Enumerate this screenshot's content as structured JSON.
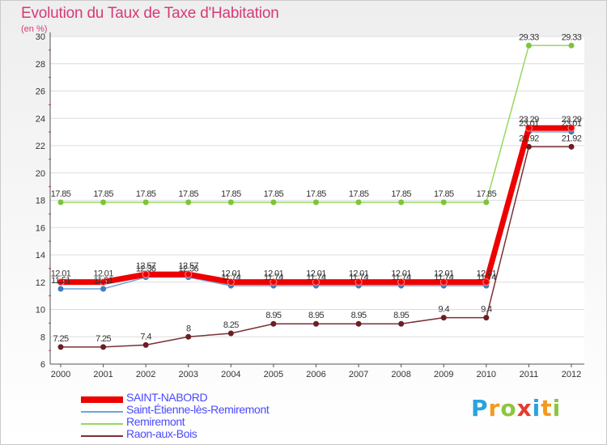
{
  "title": "Evolution du Taux de Taxe d'Habitation",
  "subtitle": "(en %)",
  "logo": {
    "text": "Proxiti",
    "letters": [
      {
        "char": "P",
        "color": "#2aa3de"
      },
      {
        "char": "r",
        "color": "#f39a1e"
      },
      {
        "char": "o",
        "color": "#8cc63f"
      },
      {
        "char": "x",
        "color": "#e63c2f"
      },
      {
        "char": "i",
        "color": "#2aa3de"
      },
      {
        "char": "t",
        "color": "#f39a1e"
      },
      {
        "char": "i",
        "color": "#8cc63f"
      }
    ]
  },
  "chart_data": {
    "type": "line",
    "title": "Evolution du Taux de Taxe d'Habitation",
    "ylabel": "(en %)",
    "xlabel": "",
    "categories": [
      "2000",
      "2001",
      "2002",
      "2003",
      "2004",
      "2005",
      "2006",
      "2007",
      "2008",
      "2009",
      "2010",
      "2011",
      "2012"
    ],
    "ylim": [
      6,
      30
    ],
    "yticks": [
      6,
      8,
      10,
      12,
      14,
      16,
      18,
      20,
      22,
      24,
      26,
      28,
      30
    ],
    "ytick_labels": [
      "6",
      "8",
      "10",
      "12",
      "14",
      "16",
      "18",
      "20",
      "22",
      "24",
      "26",
      "28",
      "30"
    ],
    "grid": "horizontal",
    "legend_position": "bottom-left",
    "series": [
      {
        "name": "Remiremont",
        "color": "#97d85c",
        "marker_color": "#7cc43a",
        "values": [
          17.85,
          17.85,
          17.85,
          17.85,
          17.85,
          17.85,
          17.85,
          17.85,
          17.85,
          17.85,
          17.85,
          29.33,
          29.33
        ],
        "labels": [
          "17.85",
          "17.85",
          "17.85",
          "17.85",
          "17.85",
          "17.85",
          "17.85",
          "17.85",
          "17.85",
          "17.85",
          "17.85",
          "29.33",
          "29.33"
        ]
      },
      {
        "name": "Raon-aux-Bois",
        "color": "#7a3035",
        "marker_color": "#6b1f25",
        "values": [
          7.25,
          7.25,
          7.4,
          8,
          8.25,
          8.95,
          8.95,
          8.95,
          8.95,
          9.4,
          9.4,
          21.92,
          21.92
        ],
        "labels": [
          "7.25",
          "7.25",
          "7.4",
          "8",
          "8.25",
          "8.95",
          "8.95",
          "8.95",
          "8.95",
          "9.4",
          "9.4",
          "21.92",
          "21.92"
        ]
      },
      {
        "name": "Saint-Étienne-lès-Remiremont",
        "color": "#6fa3d8",
        "marker_color": "#3f7cc0",
        "values": [
          11.51,
          11.51,
          12.36,
          12.36,
          11.74,
          11.74,
          11.74,
          11.74,
          11.74,
          11.74,
          11.74,
          23.01,
          23.01
        ],
        "labels": [
          "11.51",
          "11.51",
          "12.36",
          "12.36",
          "11.74",
          "11.74",
          "11.74",
          "11.74",
          "11.74",
          "11.74",
          "11.74",
          "23.01",
          "23.01"
        ]
      },
      {
        "name": "SAINT-NABORD",
        "color": "#ee0000",
        "marker_color": "#ee0000",
        "values": [
          12.01,
          12.01,
          12.57,
          12.57,
          12.01,
          12.01,
          12.01,
          12.01,
          12.01,
          12.01,
          12.01,
          23.29,
          23.29
        ],
        "labels": [
          "12.01",
          "12.01",
          "12.57",
          "12.57",
          "12.01",
          "12.01",
          "12.01",
          "12.01",
          "12.01",
          "12.01",
          "12.01",
          "23.29",
          "23.29"
        ]
      }
    ],
    "legend_order": [
      "SAINT-NABORD",
      "Saint-Étienne-lès-Remiremont",
      "Remiremont",
      "Raon-aux-Bois"
    ]
  }
}
